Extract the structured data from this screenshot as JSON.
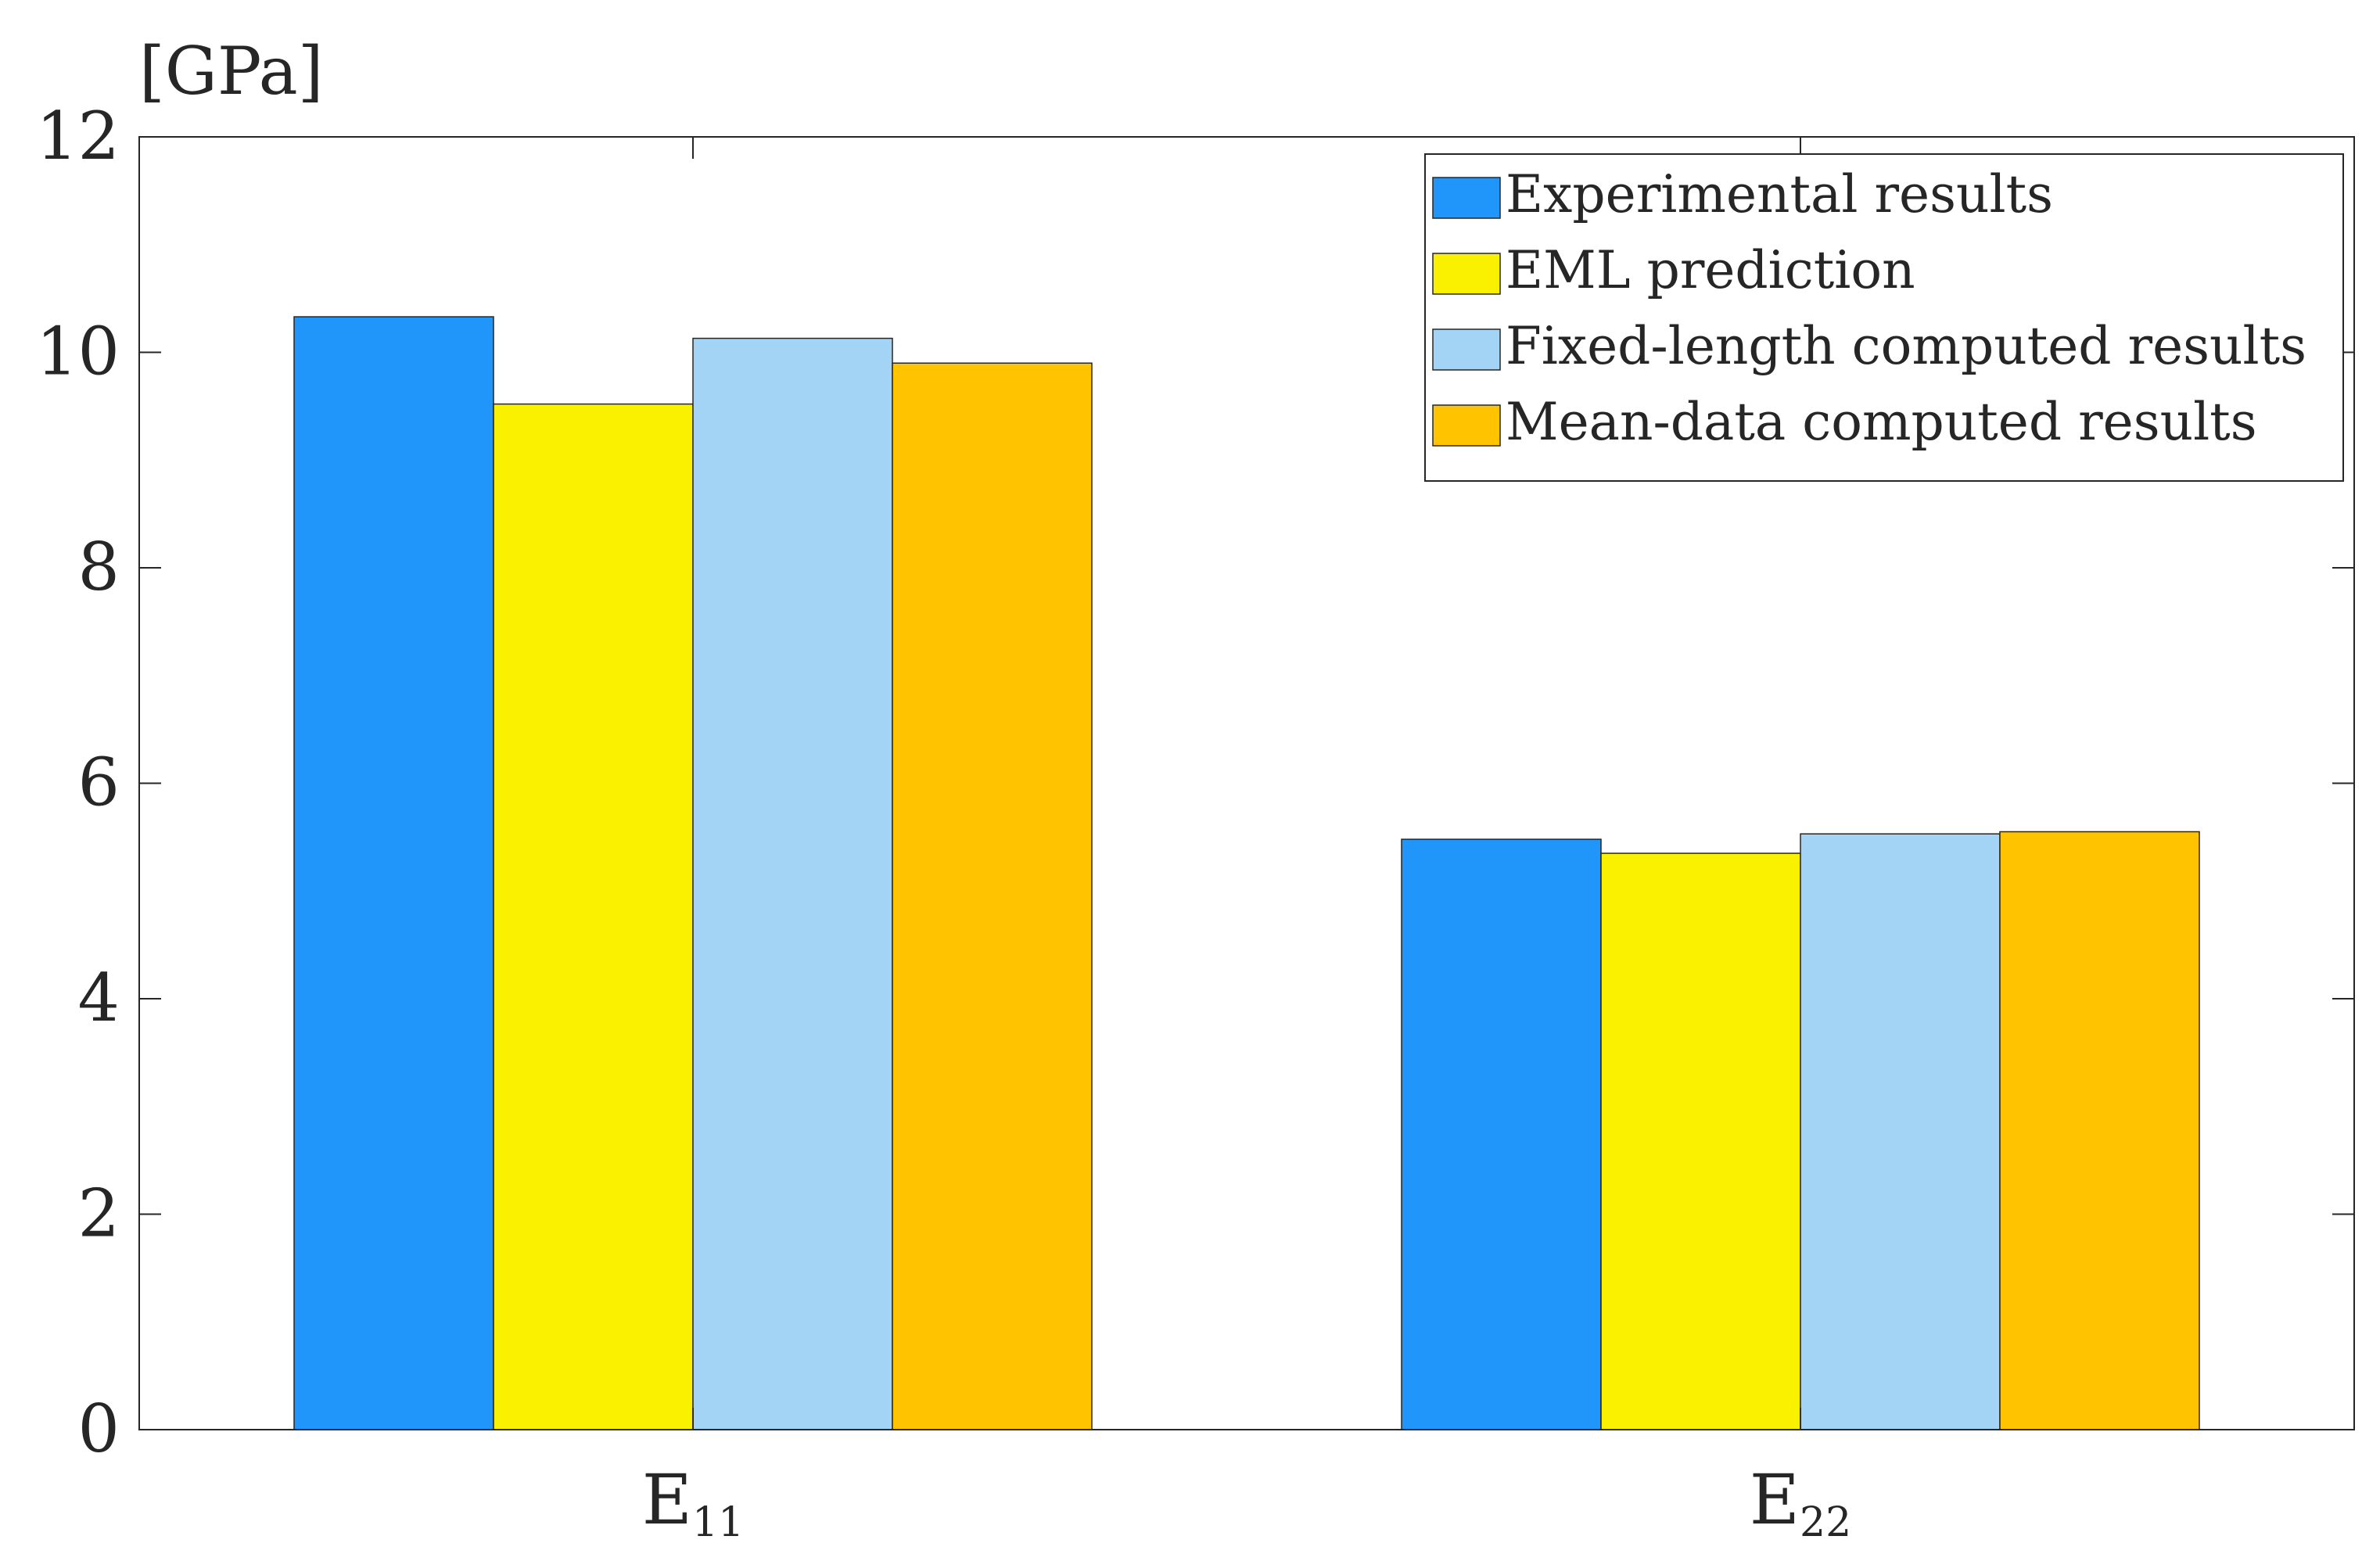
{
  "chart_data": {
    "type": "bar",
    "title": "",
    "ylabel": "[GPa]",
    "xlabel": "",
    "ylim": [
      0,
      12
    ],
    "yticks": [
      0,
      2,
      4,
      6,
      8,
      10,
      12
    ],
    "grid": false,
    "legend_position": "top-right",
    "categories": [
      {
        "base": "E",
        "sub": "11"
      },
      {
        "base": "E",
        "sub": "22"
      }
    ],
    "series": [
      {
        "name": "Experimental results",
        "color": "#2196FA",
        "values": [
          10.33,
          5.48
        ]
      },
      {
        "name": "EML prediction",
        "color": "#F9F100",
        "values": [
          9.52,
          5.35
        ]
      },
      {
        "name": "Fixed-length computed results",
        "color": "#A3D4F6",
        "values": [
          10.13,
          5.53
        ]
      },
      {
        "name": "Mean-data computed results",
        "color": "#FFC300",
        "values": [
          9.9,
          5.55
        ]
      }
    ]
  }
}
